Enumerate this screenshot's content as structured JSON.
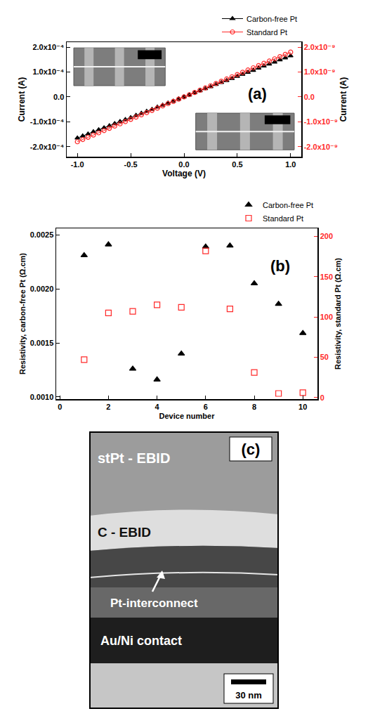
{
  "chart_data": [
    {
      "type": "scatter",
      "xlabel": "Voltage (V)",
      "ylabel": "Current (A)",
      "y2label": "Current (A)",
      "annotations": [
        "(a)"
      ],
      "x": [
        -1.0,
        -0.95,
        -0.9,
        -0.85,
        -0.8,
        -0.75,
        -0.7,
        -0.65,
        -0.6,
        -0.55,
        -0.5,
        -0.45,
        -0.4,
        -0.35,
        -0.3,
        -0.25,
        -0.2,
        -0.15,
        -0.1,
        -0.05,
        0,
        0.05,
        0.1,
        0.15,
        0.2,
        0.25,
        0.3,
        0.35,
        0.4,
        0.45,
        0.5,
        0.55,
        0.6,
        0.65,
        0.7,
        0.75,
        0.8,
        0.85,
        0.9,
        0.95,
        1.0
      ],
      "series": [
        {
          "name": "Carbon-free Pt",
          "color": "#000000",
          "marker": "triangle-up",
          "line_style": "solid",
          "values": [
            -0.000165,
            -0.000157,
            -0.000149,
            -0.00014,
            -0.000132,
            -0.000124,
            -0.000116,
            -0.000107,
            -9.9e-05,
            -9.1e-05,
            -8.3e-05,
            -7.4e-05,
            -6.6e-05,
            -5.8e-05,
            -5e-05,
            -4.1e-05,
            -3.3e-05,
            -2.5e-05,
            -1.7e-05,
            -8e-06,
            0,
            8e-06,
            1.7e-05,
            2.5e-05,
            3.3e-05,
            4.1e-05,
            5e-05,
            5.8e-05,
            6.6e-05,
            7.4e-05,
            8.3e-05,
            9.1e-05,
            9.9e-05,
            0.000107,
            0.000116,
            0.000124,
            0.000132,
            0.00014,
            0.000149,
            0.000157,
            0.000165
          ]
        },
        {
          "name": "Standard Pt",
          "color": "#ff2a2a",
          "marker": "circle-open",
          "line_style": "solid",
          "axis": "y2",
          "values": [
            -1.8e-09,
            -1.71e-09,
            -1.62e-09,
            -1.53e-09,
            -1.44e-09,
            -1.35e-09,
            -1.26e-09,
            -1.17e-09,
            -1.08e-09,
            -9.9e-10,
            -9e-10,
            -8.1e-10,
            -7.2e-10,
            -6.3e-10,
            -5.4e-10,
            -4.5e-10,
            -3.6e-10,
            -2.7e-10,
            -1.8e-10,
            -9e-11,
            0,
            9e-11,
            1.8e-10,
            2.7e-10,
            3.6e-10,
            4.5e-10,
            5.4e-10,
            6.3e-10,
            7.2e-10,
            8.1e-10,
            9e-10,
            9.9e-10,
            1.08e-09,
            1.17e-09,
            1.26e-09,
            1.35e-09,
            1.44e-09,
            1.53e-09,
            1.62e-09,
            1.71e-09,
            1.8e-09
          ]
        }
      ],
      "xlim": [
        -1.1,
        1.1
      ],
      "xticks": [
        {
          "value": -1.0,
          "label": "-1.0"
        },
        {
          "value": -0.5,
          "label": "-0.5"
        },
        {
          "value": 0,
          "label": "0.0"
        },
        {
          "value": 0.5,
          "label": "0.5"
        },
        {
          "value": 1.0,
          "label": "1.0"
        }
      ],
      "ylim": [
        -0.00024,
        0.00022
      ],
      "yticks": [
        {
          "value": -0.0002,
          "label": "-2.0x10⁻⁴"
        },
        {
          "value": -0.0001,
          "label": "-1.0x10⁻⁴"
        },
        {
          "value": 0,
          "label": "0.0"
        },
        {
          "value": 0.0001,
          "label": "1.0x10⁻⁴"
        },
        {
          "value": 0.0002,
          "label": "2.0x10⁻⁴"
        }
      ],
      "y2lim": [
        -2.4e-09,
        2.2e-09
      ],
      "y2ticks": [
        {
          "value": -2e-09,
          "label": "-2.0x10⁻⁹"
        },
        {
          "value": -1e-09,
          "label": "-1.0x10⁻⁹"
        },
        {
          "value": 0,
          "label": "0.0"
        },
        {
          "value": 1e-09,
          "label": "1.0x10⁻⁹"
        },
        {
          "value": 2e-09,
          "label": "2.0x10⁻⁹"
        }
      ],
      "grid": false,
      "legend": "top right"
    },
    {
      "type": "scatter",
      "xlabel": "Device number",
      "ylabel": "Resistivity, carbon-free Pt (Ω.cm)",
      "y2label": "Resistivity, standard Pt (Ω.cm)",
      "annotations": [
        "(b)"
      ],
      "x": [
        1,
        2,
        3,
        4,
        5,
        6,
        7,
        8,
        9,
        10
      ],
      "series": [
        {
          "name": "Carbon-free Pt",
          "color": "#000000",
          "marker": "triangle-up",
          "values": [
            0.00231,
            0.00241,
            0.00126,
            0.00116,
            0.0014,
            0.00239,
            0.0024,
            0.00205,
            0.00186,
            0.00159
          ]
        },
        {
          "name": "Standard Pt",
          "color": "#ff2a2a",
          "marker": "square-open",
          "axis": "y2",
          "values": [
            47,
            105,
            107,
            115,
            112,
            182,
            110,
            31,
            5,
            6
          ]
        }
      ],
      "xlim": [
        -0.15,
        10.6
      ],
      "xticks": [
        0,
        2,
        4,
        6,
        8,
        10
      ],
      "ylim": [
        0.00098,
        0.00256
      ],
      "yticks": [
        {
          "value": 0.001,
          "label": "0.0010"
        },
        {
          "value": 0.0015,
          "label": "0.0015"
        },
        {
          "value": 0.002,
          "label": "0.0020"
        },
        {
          "value": 0.0025,
          "label": "0.0025"
        }
      ],
      "y2lim": [
        -2,
        210
      ],
      "y2ticks": [
        0,
        50,
        100,
        150,
        200
      ],
      "grid": false,
      "legend": "top right"
    }
  ],
  "image": {
    "panel": "(c)",
    "labels": [
      "stPt - EBID",
      "C - EBID",
      "Pt-interconnect",
      "Au/Ni contact"
    ],
    "scale_bar": "30 nm"
  }
}
